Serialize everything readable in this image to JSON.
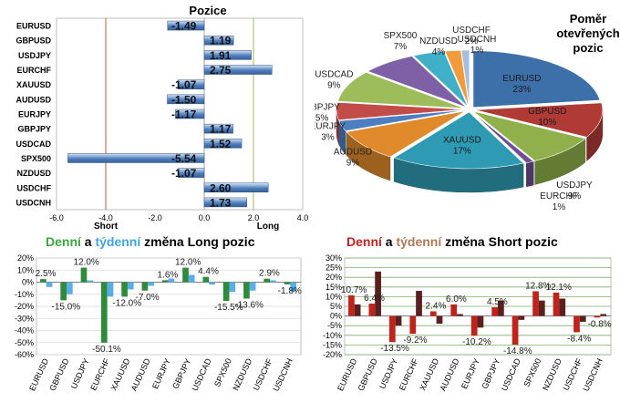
{
  "chart_data": [
    {
      "type": "bar",
      "orientation": "horizontal",
      "title": "Pozice",
      "categories": [
        "EURUSD",
        "GBPUSD",
        "USDJPY",
        "EURCHF",
        "XAUUSD",
        "AUDUSD",
        "EURJPY",
        "GBPJPY",
        "USDCAD",
        "SPX500",
        "NZDUSD",
        "USDCHF",
        "USDCNH"
      ],
      "values": [
        -1.49,
        1.19,
        1.91,
        2.75,
        -1.07,
        -1.5,
        -1.17,
        1.17,
        1.52,
        -5.54,
        -1.07,
        2.6,
        1.73
      ],
      "value_labels": [
        "-1.49",
        "1.19",
        "1.91",
        "2.75",
        "-1.07",
        "-1.50",
        "-1.17",
        "1.17",
        "1.52",
        "-5.54",
        "-1.07",
        "2.60",
        "1.73"
      ],
      "xlim": [
        -6,
        4
      ],
      "x_ticks": [
        "-6.0",
        "-4.0",
        "-2.0",
        "0.0",
        "2.0",
        "4.0"
      ],
      "reference_lines": [
        -4,
        2
      ],
      "annotations": [
        "Short",
        "Long"
      ],
      "colors": {
        "bar": "#4f7fbf",
        "bar_light": "#d6e3f3",
        "short_line": "#c0504d",
        "long_line": "#9bbb59"
      }
    },
    {
      "type": "pie",
      "title": "Poměr otevřených pozic",
      "slices": [
        {
          "label": "EURUSD",
          "percent": "23%",
          "value": 23,
          "color": "#3d6fa8"
        },
        {
          "label": "GBPUSD",
          "percent": "10%",
          "value": 10,
          "color": "#b03a36"
        },
        {
          "label": "USDJPY",
          "percent": "9%",
          "value": 9,
          "color": "#8fb04a"
        },
        {
          "label": "EURCHF",
          "percent": "1%",
          "value": 1,
          "color": "#6e4f93"
        },
        {
          "label": "XAUUSD",
          "percent": "17%",
          "value": 17,
          "color": "#2f9ab3"
        },
        {
          "label": "AUDUSD",
          "percent": "9%",
          "value": 9,
          "color": "#e08a2c"
        },
        {
          "label": "EURJPY",
          "percent": "3%",
          "value": 3,
          "color": "#4d7fc0"
        },
        {
          "label": "GBPJPY",
          "percent": "5%",
          "value": 5,
          "color": "#c24c48"
        },
        {
          "label": "USDCAD",
          "percent": "9%",
          "value": 9,
          "color": "#9cbd5a"
        },
        {
          "label": "SPX500",
          "percent": "7%",
          "value": 7,
          "color": "#7d60a5"
        },
        {
          "label": "NZDUSD",
          "percent": "4%",
          "value": 4,
          "color": "#3fb0c8"
        },
        {
          "label": "USDCHF",
          "percent": "2%",
          "value": 2,
          "color": "#f29b3d"
        },
        {
          "label": "USDCNH",
          "percent": "1%",
          "value": 1,
          "color": "#a6bedd"
        }
      ]
    },
    {
      "type": "bar",
      "title_parts": [
        {
          "text": "Denní",
          "color": "#3aa640"
        },
        {
          "text": " a ",
          "color": "#000000"
        },
        {
          "text": "týdenní",
          "color": "#3fa3e6"
        },
        {
          "text": " změna Long pozic",
          "color": "#000000"
        }
      ],
      "categories": [
        "EURUSD",
        "GBPUSD",
        "USDJPY",
        "EURCHF",
        "XAUUSD",
        "AUDUSD",
        "EURJPY",
        "GBPJPY",
        "USDCAD",
        "SPX500",
        "NZDUSD",
        "USDCHF",
        "USDCNH"
      ],
      "series": [
        {
          "values": [
            2.5,
            -15.0,
            12.0,
            -50.1,
            -12.0,
            -7.0,
            1.6,
            12.0,
            4.4,
            -15.5,
            -13.6,
            2.9,
            -1.8
          ],
          "color": "#2e8b3c"
        },
        {
          "values": [
            -4.0,
            -10.0,
            1.5,
            -12.0,
            -6.0,
            -3.0,
            3.0,
            6.0,
            -2.0,
            -8.0,
            -7.0,
            1.5,
            -8.0
          ],
          "color": "#5aaee8"
        }
      ],
      "data_labels": [
        "2.5%",
        "-15.0%",
        "12.0%",
        "-50.1%",
        "-12.0%",
        "-7.0%",
        "1.6%",
        "12.0%",
        "4.4%",
        "-15.5%",
        "-13.6%",
        "2.9%",
        "-1.8%"
      ],
      "ylim": [
        -60,
        20
      ],
      "y_ticks": [
        "20%",
        "10%",
        "0%",
        "-10%",
        "-20%",
        "-30%",
        "-40%",
        "-50%",
        "-60%"
      ]
    },
    {
      "type": "bar",
      "title_parts": [
        {
          "text": "Denní",
          "color": "#c0221c"
        },
        {
          "text": " a ",
          "color": "#000000"
        },
        {
          "text": "týdenní",
          "color": "#b07a5a"
        },
        {
          "text": " změna Short pozic",
          "color": "#000000"
        }
      ],
      "categories": [
        "EURUSD",
        "GBPUSD",
        "USDJPY",
        "EURCHF",
        "XAUUSD",
        "AUDUSD",
        "EURJPY",
        "GBPJPY",
        "USDCAD",
        "SPX500",
        "NZDUSD",
        "USDCHF",
        "USDCNH"
      ],
      "series": [
        {
          "values": [
            10.7,
            6.4,
            -13.5,
            -9.2,
            2.4,
            6.0,
            -10.2,
            4.5,
            -14.8,
            12.8,
            12.1,
            -8.4,
            -0.8
          ],
          "color": "#c0221c"
        },
        {
          "values": [
            6.0,
            23.0,
            -5.0,
            13.0,
            -4.0,
            1.0,
            -6.0,
            8.0,
            -2.0,
            8.0,
            9.0,
            -3.0,
            1.0
          ],
          "color": "#5a2020"
        }
      ],
      "data_labels": [
        "10.7%",
        "6.4%",
        "-13.5%",
        "-9.2%",
        "2.4%",
        "6.0%",
        "-10.2%",
        "4.5%",
        "-14.8%",
        "12.8%",
        "12.1%",
        "-8.4%",
        "-0.8%"
      ],
      "ylim": [
        -20,
        30
      ],
      "y_ticks": [
        "30%",
        "25%",
        "20%",
        "15%",
        "10%",
        "5%",
        "0%",
        "-5%",
        "-10%",
        "-15%",
        "-20%"
      ]
    }
  ]
}
